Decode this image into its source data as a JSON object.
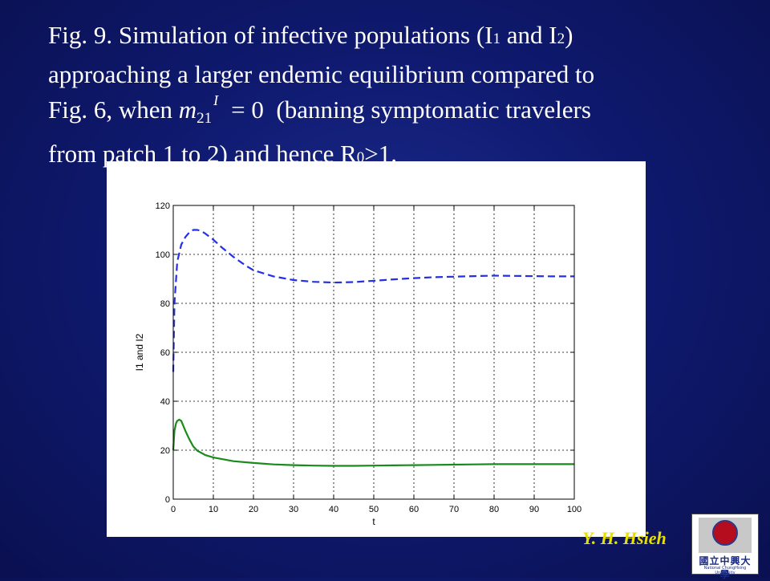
{
  "caption": {
    "line1_a": "Fig. 9. Simulation of infective populations (I",
    "line1_s1": "1",
    "line1_b": " and I",
    "line1_s2": "2",
    "line1_c": ")",
    "line2": "approaching a larger endemic equilibrium compared to",
    "line3_a": "Fig. 6, when ",
    "math_m": "m",
    "math_sub": "21",
    "math_sup": "I",
    "math_eq": "= 0",
    "line3_b": "  (banning symptomatic travelers",
    "line4_a": "from patch 1 to 2) and hence R",
    "line4_s": "0",
    "line4_b": ">1."
  },
  "footer": {
    "author": "Y. H. Hsieh",
    "logo_text": "國立中興大學",
    "logo_sub": "National ChungHsing University"
  },
  "colors": {
    "I1": "#2430e8",
    "I2": "#1a8a1a"
  },
  "chart_data": {
    "type": "line",
    "xlabel": "t",
    "ylabel": "I1 and I2",
    "xlim": [
      0,
      100
    ],
    "ylim": [
      0,
      120
    ],
    "grid": true,
    "xticks": [
      "0",
      "10",
      "20",
      "30",
      "40",
      "50",
      "60",
      "70",
      "80",
      "90",
      "100"
    ],
    "yticks": [
      "0",
      "20",
      "40",
      "60",
      "80",
      "100",
      "120"
    ],
    "series": [
      {
        "style": "dashed",
        "color": "#2430e8",
        "x": [
          0,
          0.3,
          1,
          2,
          3,
          4,
          5,
          6,
          7,
          8,
          10,
          12,
          15,
          18,
          20,
          25,
          30,
          35,
          40,
          45,
          50,
          55,
          60,
          65,
          70,
          75,
          80,
          85,
          90,
          95,
          100
        ],
        "y": [
          52,
          80,
          97,
          104,
          107,
          109,
          110,
          110,
          109.5,
          108.5,
          106,
          103,
          99,
          95.5,
          93.5,
          91,
          89.5,
          88.8,
          88.5,
          88.7,
          89.2,
          89.8,
          90.3,
          90.7,
          90.9,
          91.1,
          91.3,
          91.2,
          91.1,
          91.0,
          91.0
        ]
      },
      {
        "style": "solid",
        "color": "#1a8a1a",
        "x": [
          0,
          0.3,
          0.7,
          1,
          1.5,
          2,
          2.5,
          3,
          4,
          5,
          6,
          8,
          10,
          15,
          20,
          25,
          30,
          35,
          40,
          45,
          50,
          55,
          60,
          65,
          70,
          75,
          80,
          85,
          90,
          95,
          100
        ],
        "y": [
          20,
          28,
          31,
          32,
          32.5,
          32,
          30,
          28,
          24.5,
          21.5,
          19.8,
          18,
          17,
          15.5,
          14.8,
          14.2,
          13.9,
          13.7,
          13.6,
          13.6,
          13.7,
          13.8,
          13.9,
          14.0,
          14.1,
          14.2,
          14.3,
          14.3,
          14.3,
          14.3,
          14.3
        ]
      }
    ]
  }
}
